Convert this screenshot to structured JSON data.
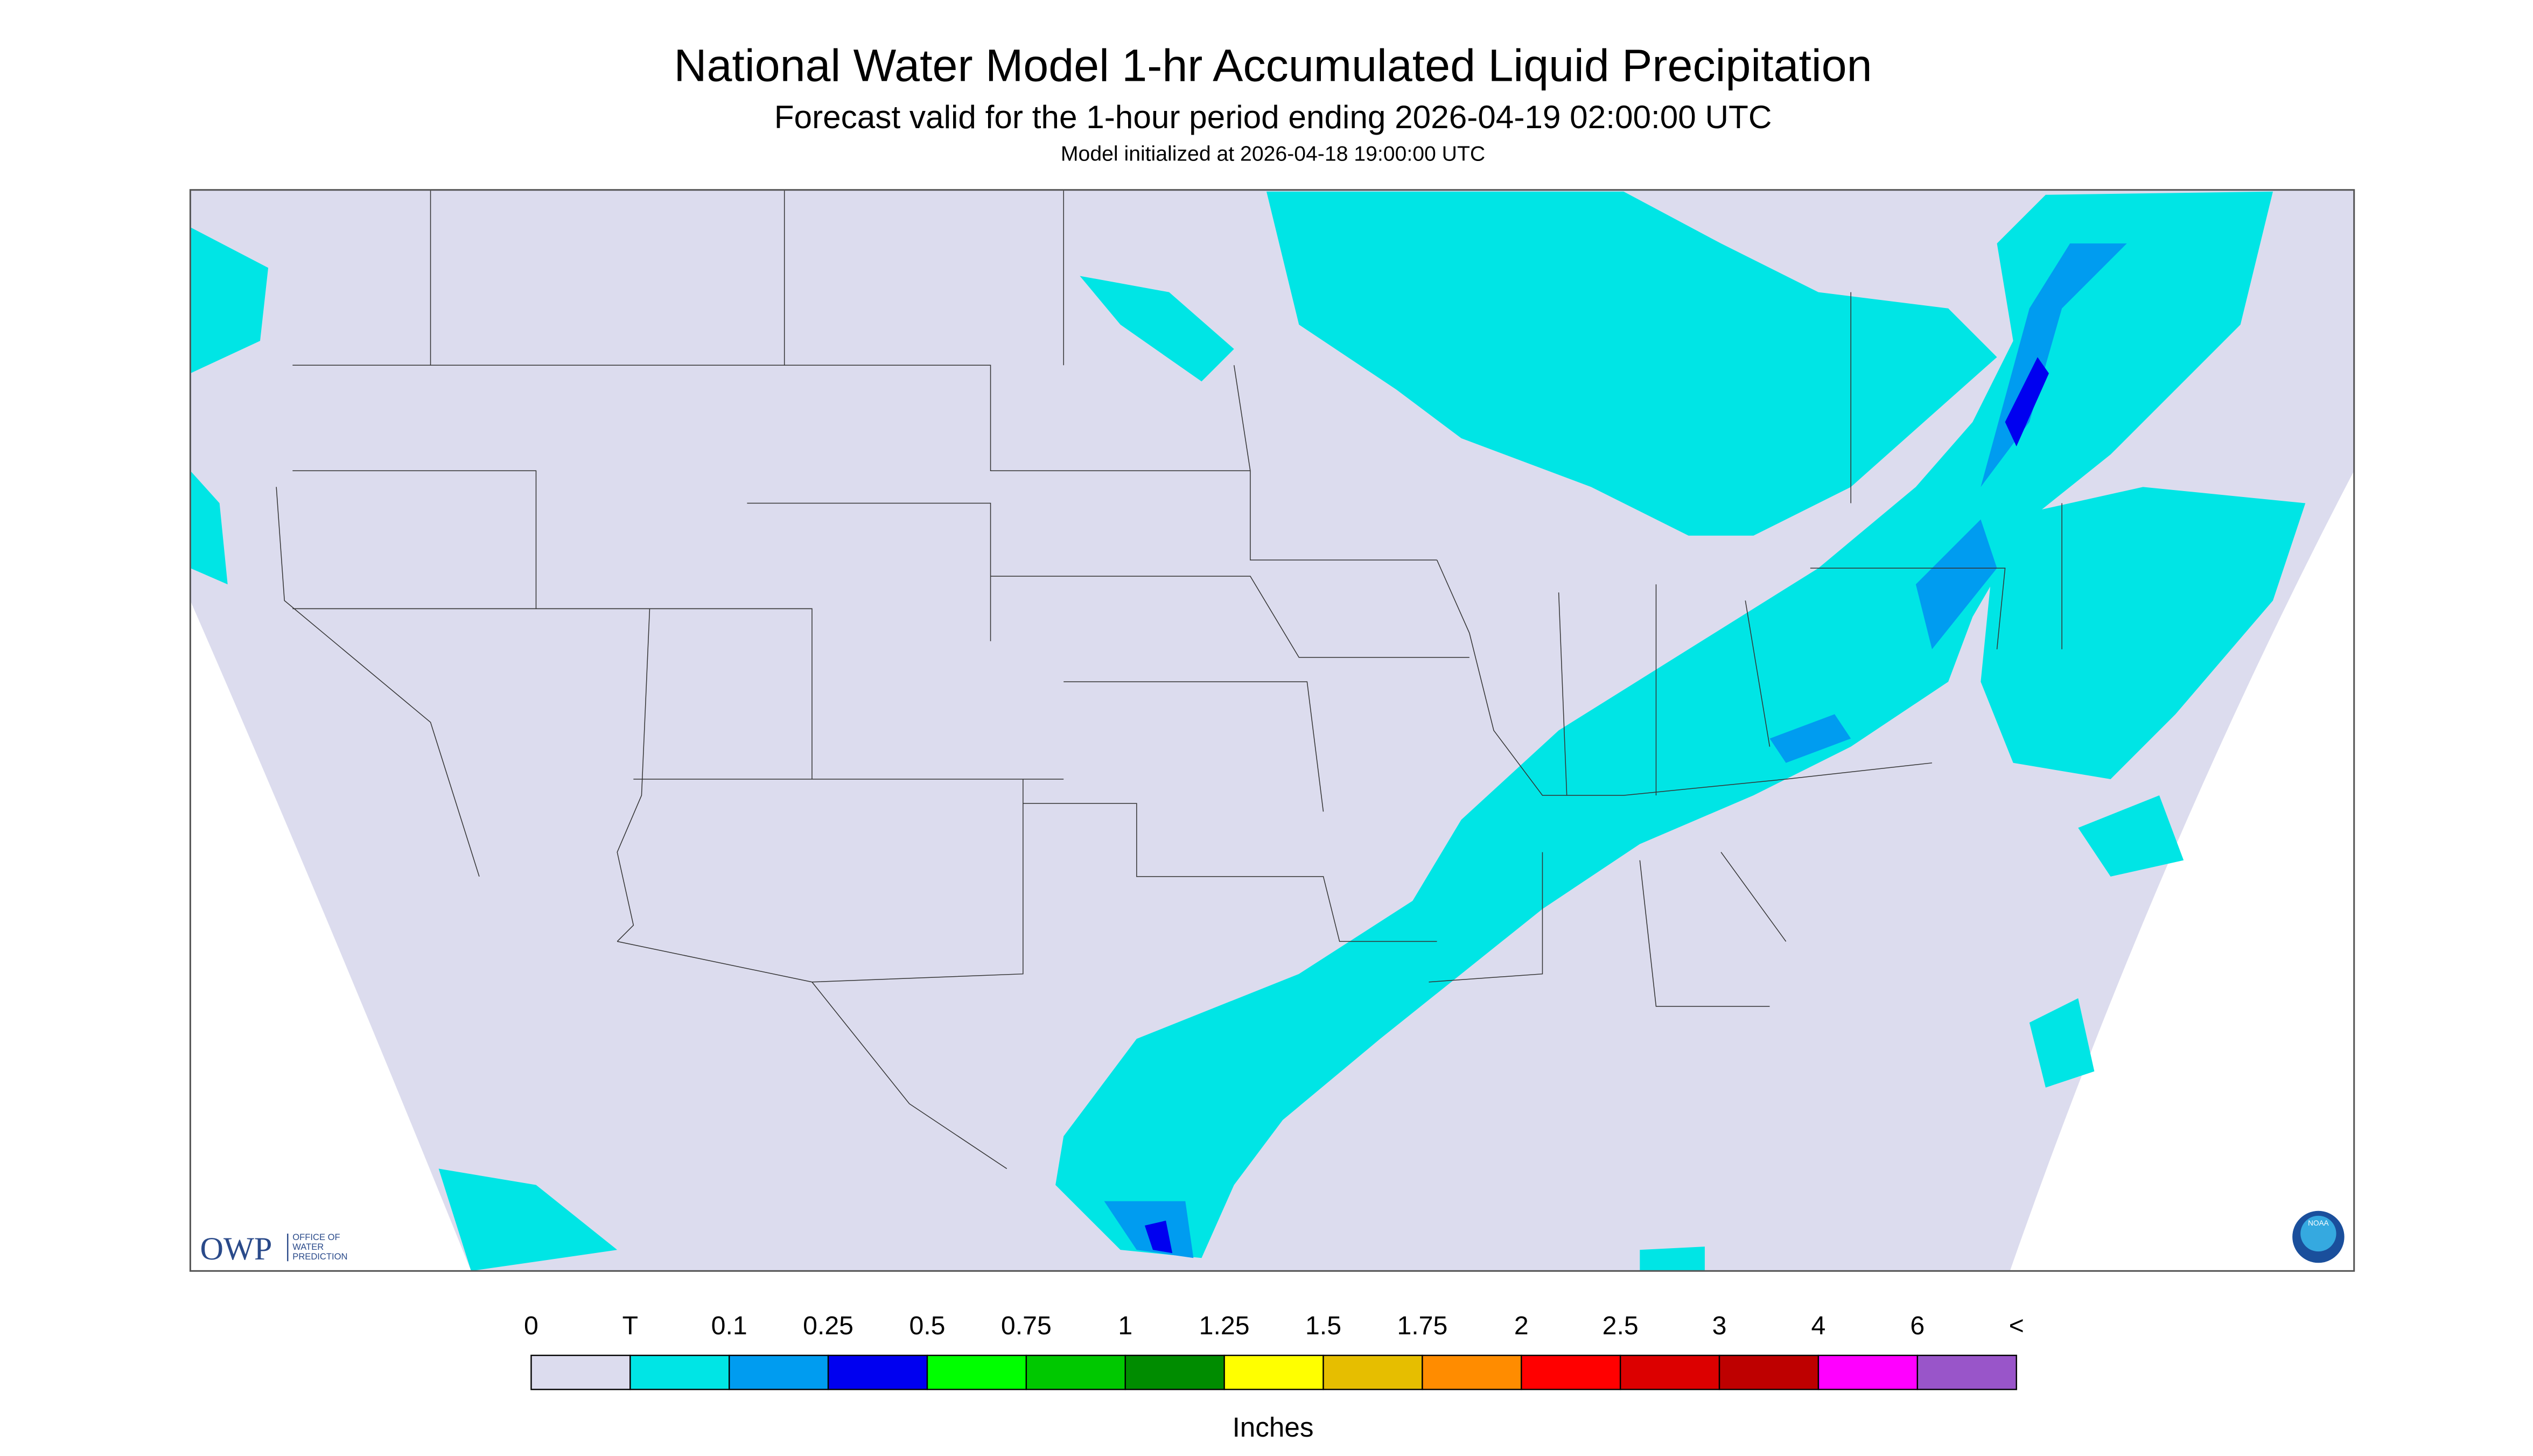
{
  "header": {
    "title": "National Water Model 1-hr Accumulated Liquid Precipitation",
    "subtitle": "Forecast valid for the 1-hour period ending 2026-04-19 02:00:00 UTC",
    "initialized": "Model initialized at 2026-04-18 19:00:00 UTC"
  },
  "legend": {
    "labels": [
      "0",
      "T",
      "0.1",
      "0.25",
      "0.5",
      "0.75",
      "1",
      "1.25",
      "1.5",
      "1.75",
      "2",
      "2.5",
      "3",
      "4",
      "6",
      "<"
    ],
    "colors": [
      "#dcdcee",
      "#00e5e5",
      "#009cf0",
      "#0000f0",
      "#00ff00",
      "#00c800",
      "#008c00",
      "#ffff00",
      "#e6be00",
      "#ff8c00",
      "#ff0000",
      "#dc0000",
      "#be0000",
      "#ff00ff",
      "#9955c9"
    ],
    "unit": "Inches"
  },
  "logos": {
    "owp": "OWP",
    "owp_lines": [
      "OFFICE OF",
      "WATER",
      "PREDICTION"
    ],
    "noaa": "NOAA"
  }
}
